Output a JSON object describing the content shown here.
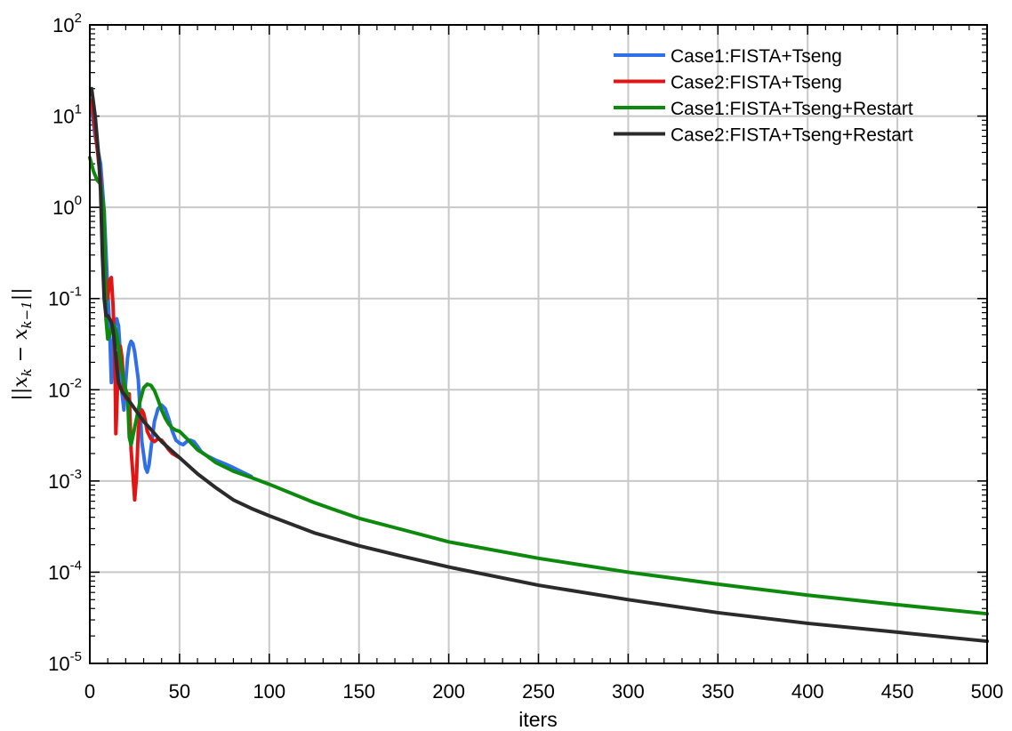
{
  "chart_data": {
    "type": "line",
    "xlabel": "iters",
    "ylabel": "||x_k − x_k−1||",
    "xlim": [
      0,
      500
    ],
    "ylim": [
      1e-05,
      100
    ],
    "yscale": "log",
    "grid": true,
    "legend_position": "top-right",
    "x_ticks": [
      "0",
      "50",
      "100",
      "150",
      "200",
      "250",
      "300",
      "350",
      "400",
      "450",
      "500"
    ],
    "y_ticks": [
      {
        "base": "10",
        "exp": "-5"
      },
      {
        "base": "10",
        "exp": "-4"
      },
      {
        "base": "10",
        "exp": "-3"
      },
      {
        "base": "10",
        "exp": "-2"
      },
      {
        "base": "10",
        "exp": "-1"
      },
      {
        "base": "10",
        "exp": "0"
      },
      {
        "base": "10",
        "exp": "1"
      },
      {
        "base": "10",
        "exp": "2"
      }
    ],
    "series": [
      {
        "name": "Case1:FISTA+Tseng",
        "color": "#2f6fe8",
        "points": [
          [
            1,
            12
          ],
          [
            3,
            6
          ],
          [
            6,
            3
          ],
          [
            8,
            0.9
          ],
          [
            10,
            0.12
          ],
          [
            11,
            0.05
          ],
          [
            12,
            0.012
          ],
          [
            13,
            0.03
          ],
          [
            14,
            0.055
          ],
          [
            15,
            0.06
          ],
          [
            16,
            0.05
          ],
          [
            17,
            0.025
          ],
          [
            18,
            0.009
          ],
          [
            19,
            0.006
          ],
          [
            20,
            0.012
          ],
          [
            21,
            0.022
          ],
          [
            22,
            0.03
          ],
          [
            23,
            0.034
          ],
          [
            24,
            0.032
          ],
          [
            25,
            0.026
          ],
          [
            27,
            0.013
          ],
          [
            28,
            0.006
          ],
          [
            29,
            0.0027
          ],
          [
            31,
            0.0014
          ],
          [
            32,
            0.00125
          ],
          [
            33,
            0.0015
          ],
          [
            34,
            0.0022
          ],
          [
            36,
            0.0045
          ],
          [
            38,
            0.0062
          ],
          [
            40,
            0.0068
          ],
          [
            42,
            0.0062
          ],
          [
            44,
            0.0048
          ],
          [
            46,
            0.0035
          ],
          [
            48,
            0.0028
          ],
          [
            50,
            0.0026
          ],
          [
            52,
            0.0025
          ],
          [
            54,
            0.0027
          ],
          [
            56,
            0.0028
          ],
          [
            58,
            0.0027
          ],
          [
            60,
            0.0024
          ],
          [
            62,
            0.0021
          ],
          [
            65,
            0.0019
          ],
          [
            70,
            0.0017
          ],
          [
            75,
            0.00155
          ],
          [
            80,
            0.0014
          ],
          [
            85,
            0.00125
          ],
          [
            90,
            0.00112
          ]
        ]
      },
      {
        "name": "Case2:FISTA+Tseng",
        "color": "#e01616",
        "points": [
          [
            1,
            15
          ],
          [
            3,
            7
          ],
          [
            6,
            2
          ],
          [
            8,
            0.5
          ],
          [
            9,
            0.12
          ],
          [
            10,
            0.1
          ],
          [
            11,
            0.16
          ],
          [
            12,
            0.17
          ],
          [
            13,
            0.08
          ],
          [
            14,
            0.02
          ],
          [
            14.5,
            0.0033
          ],
          [
            15,
            0.006
          ],
          [
            16,
            0.025
          ],
          [
            17,
            0.03
          ],
          [
            18,
            0.022
          ],
          [
            19,
            0.01
          ],
          [
            20,
            0.008
          ],
          [
            21,
            0.009
          ],
          [
            22,
            0.009
          ],
          [
            23,
            0.0022
          ],
          [
            24,
            0.0012
          ],
          [
            25,
            0.00062
          ],
          [
            26,
            0.0011
          ],
          [
            27,
            0.0035
          ],
          [
            28,
            0.0055
          ],
          [
            29,
            0.006
          ],
          [
            30,
            0.0055
          ],
          [
            31,
            0.0045
          ],
          [
            32,
            0.0035
          ],
          [
            34,
            0.0029
          ],
          [
            36,
            0.0027
          ],
          [
            38,
            0.0029
          ],
          [
            40,
            0.0028
          ],
          [
            42,
            0.0025
          ],
          [
            44,
            0.0022
          ],
          [
            46,
            0.002
          ],
          [
            48,
            0.0019
          ],
          [
            50,
            0.0018
          ]
        ]
      },
      {
        "name": "Case1:FISTA+Tseng+Restart",
        "color": "#0d8a0d",
        "points": [
          [
            0,
            3.5
          ],
          [
            2,
            2.5
          ],
          [
            4,
            2
          ],
          [
            6,
            1.8
          ],
          [
            8,
            0.9
          ],
          [
            9,
            0.06
          ],
          [
            10,
            0.036
          ],
          [
            11,
            0.04
          ],
          [
            12,
            0.047
          ],
          [
            13,
            0.052
          ],
          [
            14,
            0.048
          ],
          [
            15,
            0.04
          ],
          [
            16,
            0.03
          ],
          [
            17,
            0.022
          ],
          [
            18,
            0.016
          ],
          [
            19,
            0.012
          ],
          [
            20,
            0.01
          ],
          [
            21,
            0.009
          ],
          [
            22,
            0.003
          ],
          [
            23,
            0.0025
          ],
          [
            24,
            0.0031
          ],
          [
            26,
            0.0048
          ],
          [
            28,
            0.0075
          ],
          [
            30,
            0.0105
          ],
          [
            32,
            0.0115
          ],
          [
            34,
            0.0112
          ],
          [
            36,
            0.0098
          ],
          [
            38,
            0.0078
          ],
          [
            40,
            0.006
          ],
          [
            42,
            0.0049
          ],
          [
            44,
            0.0042
          ],
          [
            46,
            0.0038
          ],
          [
            48,
            0.0036
          ],
          [
            50,
            0.0035
          ],
          [
            52,
            0.0032
          ],
          [
            55,
            0.0028
          ],
          [
            60,
            0.0022
          ],
          [
            65,
            0.0019
          ],
          [
            70,
            0.0016
          ],
          [
            80,
            0.00128
          ],
          [
            90,
            0.00109
          ],
          [
            100,
            0.00092
          ],
          [
            125,
            0.00058
          ],
          [
            150,
            0.00039
          ],
          [
            175,
            0.00029
          ],
          [
            200,
            0.000215
          ],
          [
            250,
            0.000142
          ],
          [
            300,
            0.0001
          ],
          [
            350,
            7.4e-05
          ],
          [
            400,
            5.6e-05
          ],
          [
            450,
            4.4e-05
          ],
          [
            500,
            3.5e-05
          ]
        ]
      },
      {
        "name": "Case2:FISTA+Tseng+Restart",
        "color": "#2b2b2b",
        "points": [
          [
            1,
            20
          ],
          [
            3,
            10
          ],
          [
            5,
            3.5
          ],
          [
            6,
            1.5
          ],
          [
            7,
            0.3
          ],
          [
            8,
            0.1
          ],
          [
            9,
            0.065
          ],
          [
            10,
            0.065
          ],
          [
            11,
            0.06
          ],
          [
            12,
            0.055
          ],
          [
            13,
            0.045
          ],
          [
            14,
            0.03
          ],
          [
            15,
            0.018
          ],
          [
            16,
            0.012
          ],
          [
            18,
            0.0095
          ],
          [
            20,
            0.0085
          ],
          [
            22,
            0.0075
          ],
          [
            25,
            0.0062
          ],
          [
            30,
            0.0045
          ],
          [
            35,
            0.0035
          ],
          [
            40,
            0.0027
          ],
          [
            45,
            0.0022
          ],
          [
            50,
            0.0018
          ],
          [
            60,
            0.0012
          ],
          [
            70,
            0.00085
          ],
          [
            80,
            0.00062
          ],
          [
            90,
            0.0005
          ],
          [
            100,
            0.000415
          ],
          [
            125,
            0.00027
          ],
          [
            150,
            0.000195
          ],
          [
            175,
            0.000148
          ],
          [
            200,
            0.000114
          ],
          [
            250,
            7.2e-05
          ],
          [
            300,
            5e-05
          ],
          [
            350,
            3.6e-05
          ],
          [
            400,
            2.75e-05
          ],
          [
            450,
            2.2e-05
          ],
          [
            500,
            1.75e-05
          ]
        ]
      }
    ]
  }
}
